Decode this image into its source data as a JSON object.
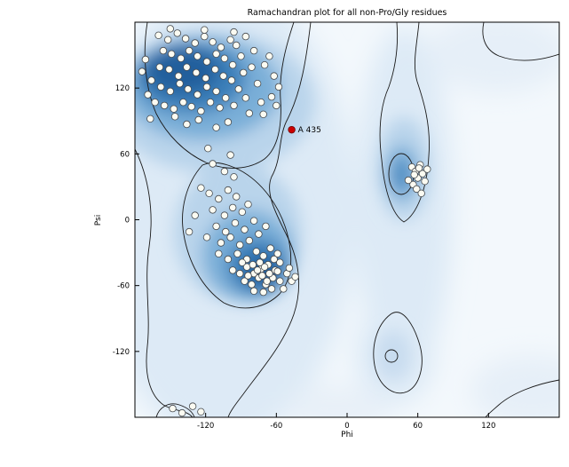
{
  "chart_data": {
    "type": "scatter",
    "title": "Ramachandran plot for all non-Pro/Gly residues",
    "xlabel": "Phi",
    "ylabel": "Psi",
    "xlim": [
      -180,
      180
    ],
    "ylim": [
      -180,
      180
    ],
    "xticks": [
      -120,
      -60,
      0,
      60,
      120
    ],
    "yticks": [
      -120,
      -60,
      0,
      60,
      120
    ],
    "grid": false,
    "legend": "none",
    "background": "kernel-density favored/allowed regions shaded blue with black contour lines",
    "highlighted_point": {
      "label": "A 435",
      "phi": -47,
      "psi": 82,
      "color": "#cc0000"
    },
    "points": [
      [
        -160,
        168
      ],
      [
        -152,
        164
      ],
      [
        -144,
        170
      ],
      [
        -137,
        165
      ],
      [
        -129,
        161
      ],
      [
        -121,
        167
      ],
      [
        -114,
        162
      ],
      [
        -107,
        157
      ],
      [
        -99,
        164
      ],
      [
        -94,
        159
      ],
      [
        -156,
        154
      ],
      [
        -149,
        151
      ],
      [
        -141,
        147
      ],
      [
        -134,
        154
      ],
      [
        -127,
        149
      ],
      [
        -119,
        144
      ],
      [
        -111,
        151
      ],
      [
        -104,
        147
      ],
      [
        -97,
        141
      ],
      [
        -90,
        149
      ],
      [
        -159,
        139
      ],
      [
        -151,
        137
      ],
      [
        -143,
        131
      ],
      [
        -136,
        139
      ],
      [
        -128,
        134
      ],
      [
        -120,
        129
      ],
      [
        -112,
        137
      ],
      [
        -105,
        131
      ],
      [
        -98,
        127
      ],
      [
        -88,
        134
      ],
      [
        -166,
        127
      ],
      [
        -158,
        121
      ],
      [
        -150,
        117
      ],
      [
        -142,
        124
      ],
      [
        -135,
        119
      ],
      [
        -127,
        114
      ],
      [
        -119,
        121
      ],
      [
        -111,
        117
      ],
      [
        -103,
        111
      ],
      [
        -92,
        119
      ],
      [
        -163,
        107
      ],
      [
        -155,
        104
      ],
      [
        -147,
        101
      ],
      [
        -139,
        107
      ],
      [
        -132,
        103
      ],
      [
        -124,
        99
      ],
      [
        -116,
        107
      ],
      [
        -108,
        102
      ],
      [
        -96,
        104
      ],
      [
        -86,
        111
      ],
      [
        -171,
        146
      ],
      [
        -169,
        114
      ],
      [
        -81,
        139
      ],
      [
        -76,
        124
      ],
      [
        -73,
        107
      ],
      [
        -79,
        154
      ],
      [
        -71,
        96
      ],
      [
        -83,
        97
      ],
      [
        -146,
        94
      ],
      [
        -126,
        91
      ],
      [
        -101,
        89
      ],
      [
        -111,
        84
      ],
      [
        -136,
        87
      ],
      [
        -150,
        174
      ],
      [
        -121,
        173
      ],
      [
        -96,
        171
      ],
      [
        -86,
        167
      ],
      [
        -66,
        149
      ],
      [
        -62,
        131
      ],
      [
        -58,
        121
      ],
      [
        -70,
        141
      ],
      [
        -64,
        112
      ],
      [
        -167,
        92
      ],
      [
        -174,
        135
      ],
      [
        -60,
        104
      ],
      [
        -124,
        29
      ],
      [
        -117,
        24
      ],
      [
        -109,
        19
      ],
      [
        -101,
        27
      ],
      [
        -94,
        21
      ],
      [
        -114,
        9
      ],
      [
        -104,
        4
      ],
      [
        -97,
        11
      ],
      [
        -89,
        7
      ],
      [
        -84,
        14
      ],
      [
        -111,
        -6
      ],
      [
        -103,
        -11
      ],
      [
        -95,
        -3
      ],
      [
        -87,
        -9
      ],
      [
        -79,
        -1
      ],
      [
        -119,
        -16
      ],
      [
        -107,
        -21
      ],
      [
        -99,
        -16
      ],
      [
        -91,
        -23
      ],
      [
        -83,
        -19
      ],
      [
        -75,
        -13
      ],
      [
        -69,
        -6
      ],
      [
        -109,
        -31
      ],
      [
        -101,
        -36
      ],
      [
        -93,
        -31
      ],
      [
        -85,
        -36
      ],
      [
        -77,
        -29
      ],
      [
        -71,
        -33
      ],
      [
        -65,
        -26
      ],
      [
        -59,
        -31
      ],
      [
        -97,
        -46
      ],
      [
        -91,
        -49
      ],
      [
        -85,
        -43
      ],
      [
        -79,
        -49
      ],
      [
        -73,
        -45
      ],
      [
        -67,
        -41
      ],
      [
        -61,
        -46
      ],
      [
        -57,
        -39
      ],
      [
        -87,
        -56
      ],
      [
        -81,
        -59
      ],
      [
        -75,
        -53
      ],
      [
        -69,
        -59
      ],
      [
        -63,
        -53
      ],
      [
        -57,
        -56
      ],
      [
        -51,
        -49
      ],
      [
        -64,
        -63
      ],
      [
        -71,
        -66
      ],
      [
        -79,
        -65
      ],
      [
        -54,
        -63
      ],
      [
        -59,
        -47
      ],
      [
        -62,
        -36
      ],
      [
        -66,
        -49
      ],
      [
        -70,
        -43
      ],
      [
        -74,
        -39
      ],
      [
        -68,
        -56
      ],
      [
        -72,
        -51
      ],
      [
        -76,
        -46
      ],
      [
        -80,
        -41
      ],
      [
        -84,
        -51
      ],
      [
        -89,
        -39
      ],
      [
        -129,
        4
      ],
      [
        -134,
        -11
      ],
      [
        -49,
        -44
      ],
      [
        -47,
        -56
      ],
      [
        -96,
        39
      ],
      [
        -104,
        44
      ],
      [
        -118,
        65
      ],
      [
        -114,
        51
      ],
      [
        -99,
        59
      ],
      [
        -44,
        -52
      ],
      [
        55,
        48
      ],
      [
        58,
        44
      ],
      [
        62,
        50
      ],
      [
        60,
        38
      ],
      [
        56,
        32
      ],
      [
        64,
        42
      ],
      [
        66,
        35
      ],
      [
        59,
        28
      ],
      [
        63,
        24
      ],
      [
        68,
        46
      ],
      [
        57,
        41
      ],
      [
        61,
        47
      ],
      [
        52,
        36
      ],
      [
        -148,
        -172
      ],
      [
        -140,
        -176
      ],
      [
        -131,
        -170
      ],
      [
        -124,
        -175
      ]
    ]
  },
  "colors": {
    "background": "#f3f8fc",
    "density_wash": "#ddeaf6",
    "density_mid": "#b9d4eb",
    "density_strong": "#7aafd8",
    "density_core": "#3b7fb9",
    "density_darkest": "#205f9c",
    "contour": "#1a1a1a",
    "point_fill": "#fbfbf2",
    "point_stroke": "#45494e",
    "highlight": "#cc0000"
  }
}
